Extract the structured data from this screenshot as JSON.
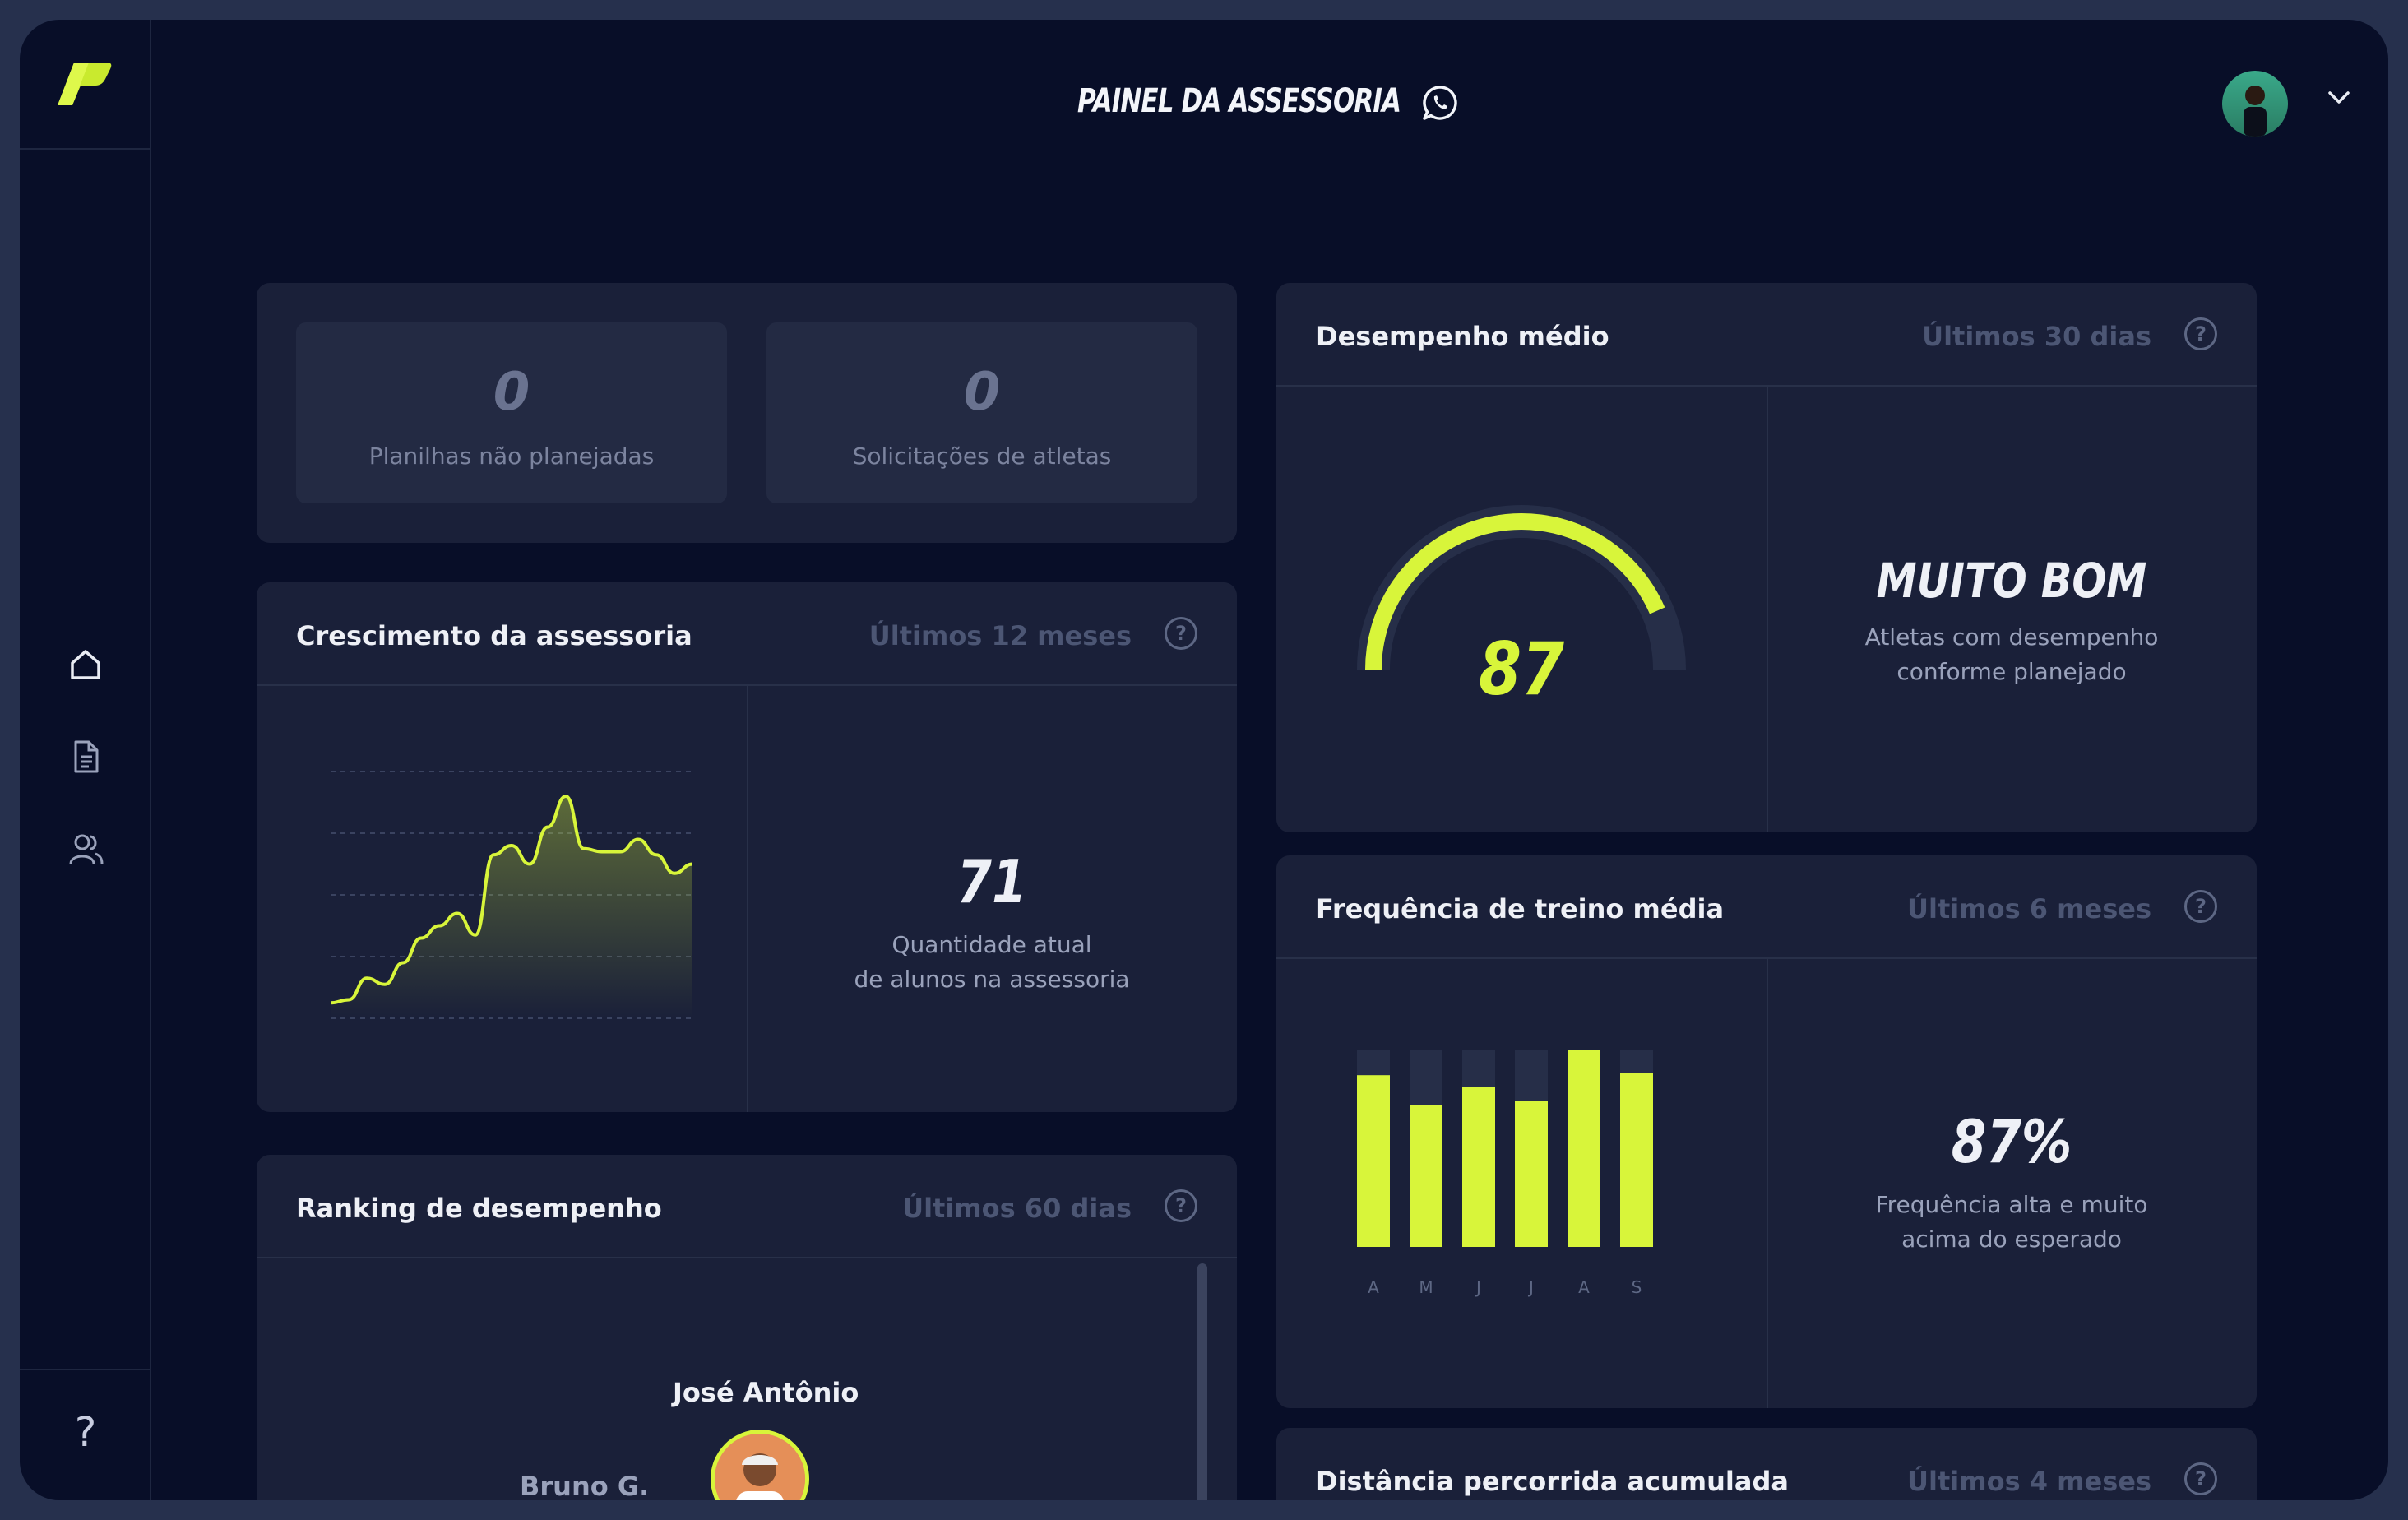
{
  "header": {
    "title": "PAINEL DA ASSESSORIA"
  },
  "sidebar": {
    "items": [
      {
        "icon": "home-icon"
      },
      {
        "icon": "document-icon"
      },
      {
        "icon": "users-icon"
      }
    ],
    "help_label": "?"
  },
  "summary": {
    "unplanned_value": "0",
    "unplanned_label": "Planilhas não planejadas",
    "requests_value": "0",
    "requests_label": "Solicitações de atletas"
  },
  "growth": {
    "title": "Crescimento da assessoria",
    "period": "Últimos 12 meses",
    "value": "71",
    "caption_line1": "Quantidade atual",
    "caption_line2": "de alunos na assessoria",
    "line_values": [
      5,
      6,
      13,
      11,
      18,
      26,
      30,
      34,
      27,
      53,
      56,
      50,
      62,
      72,
      55,
      54,
      54,
      58,
      53,
      47,
      50
    ]
  },
  "ranking": {
    "title": "Ranking de desempenho",
    "period": "Últimos 60 dias",
    "first_name": "José Antônio",
    "second_name": "Bruno G."
  },
  "performance": {
    "title": "Desempenho médio",
    "period": "Últimos 30 dias",
    "score": "87",
    "gauge_fraction": 0.87,
    "rating": "MUITO BOM",
    "caption_line1": "Atletas com desempenho",
    "caption_line2": "conforme planejado"
  },
  "frequency": {
    "title": "Frequência de treino média",
    "period": "Últimos 6 meses",
    "value": "87%",
    "caption_line1": "Frequência alta e muito",
    "caption_line2": "acima do esperado",
    "chart_data": {
      "type": "bar",
      "categories": [
        "A",
        "M",
        "J",
        "J",
        "A",
        "S"
      ],
      "values": [
        87,
        72,
        81,
        74,
        100,
        88
      ],
      "ylim": [
        0,
        100
      ]
    }
  },
  "distance": {
    "title": "Distância percorrida acumulada",
    "period": "Últimos 4 meses"
  },
  "colors": {
    "accent": "#d8f53a",
    "background": "#080e28",
    "card": "#1a2039"
  }
}
